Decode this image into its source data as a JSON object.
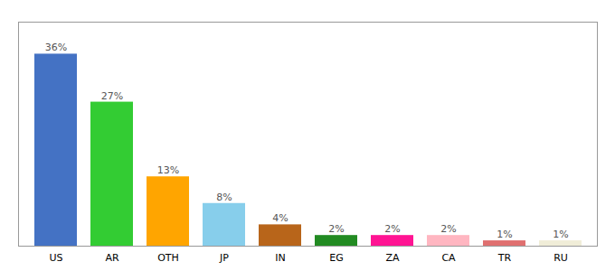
{
  "chart_data": {
    "type": "bar",
    "categories": [
      "US",
      "AR",
      "OTH",
      "JP",
      "IN",
      "EG",
      "ZA",
      "CA",
      "TR",
      "RU"
    ],
    "values": [
      36,
      27,
      13,
      8,
      4,
      2,
      2,
      2,
      1,
      1
    ],
    "value_labels": [
      "36%",
      "27%",
      "13%",
      "8%",
      "4%",
      "2%",
      "2%",
      "2%",
      "1%",
      "1%"
    ],
    "colors": [
      "#4472C4",
      "#33CC33",
      "#FFA500",
      "#87CEEB",
      "#B8651A",
      "#228B22",
      "#FF1493",
      "#FFB6C1",
      "#E07070",
      "#F0EDD8"
    ],
    "ylim": [
      0,
      42
    ],
    "data_labels": true,
    "tick_labels": "x",
    "grid": false
  }
}
